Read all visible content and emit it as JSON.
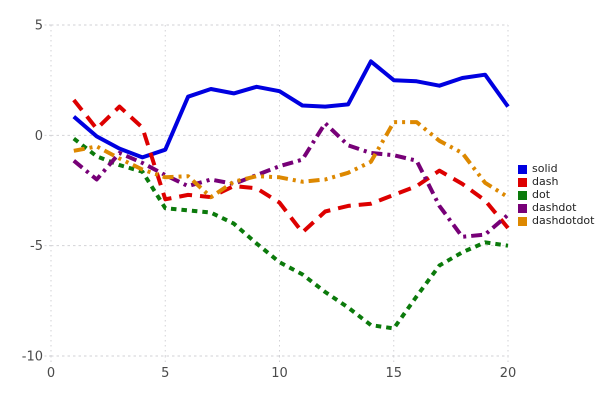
{
  "chart_data": {
    "type": "line",
    "title": "",
    "xlabel": "",
    "ylabel": "",
    "x": [
      1,
      2,
      3,
      4,
      5,
      6,
      7,
      8,
      9,
      10,
      11,
      12,
      13,
      14,
      15,
      16,
      17,
      18,
      19,
      20
    ],
    "series": [
      {
        "name": "solid",
        "color": "#0000e0",
        "dash": "solid",
        "values": [
          0.85,
          -0.05,
          -0.6,
          -1.0,
          -0.65,
          1.75,
          2.1,
          1.9,
          2.2,
          2.0,
          1.35,
          1.3,
          1.4,
          3.35,
          2.5,
          2.45,
          2.25,
          2.6,
          2.75,
          1.3
        ]
      },
      {
        "name": "dash",
        "color": "#dd0000",
        "dash": "dash",
        "values": [
          1.6,
          0.3,
          1.3,
          0.35,
          -2.9,
          -2.7,
          -2.8,
          -2.3,
          -2.4,
          -3.05,
          -4.4,
          -3.45,
          -3.2,
          -3.1,
          -2.7,
          -2.3,
          -1.6,
          -2.2,
          -2.95,
          -4.2
        ]
      },
      {
        "name": "dot",
        "color": "#0b7a0b",
        "dash": "dot",
        "values": [
          -0.15,
          -0.95,
          -1.35,
          -1.65,
          -3.3,
          -3.4,
          -3.5,
          -4.0,
          -4.9,
          -5.75,
          -6.3,
          -7.1,
          -7.8,
          -8.6,
          -8.75,
          -7.3,
          -5.9,
          -5.3,
          -4.85,
          -5.0
        ]
      },
      {
        "name": "dashdot",
        "color": "#770077",
        "dash": "dashdot",
        "values": [
          -1.15,
          -2.0,
          -0.8,
          -1.25,
          -1.8,
          -2.3,
          -2.0,
          -2.2,
          -1.8,
          -1.4,
          -1.1,
          0.55,
          -0.45,
          -0.8,
          -0.9,
          -1.15,
          -3.2,
          -4.6,
          -4.5,
          -3.6
        ]
      },
      {
        "name": "dashdotdot",
        "color": "#dd8800",
        "dash": "dashdotdot",
        "values": [
          -0.7,
          -0.5,
          -1.05,
          -1.55,
          -1.9,
          -1.85,
          -2.8,
          -2.1,
          -1.85,
          -1.9,
          -2.1,
          -2.0,
          -1.7,
          -1.2,
          0.6,
          0.6,
          -0.25,
          -0.8,
          -2.15,
          -2.8
        ]
      }
    ],
    "xlim": [
      0,
      20
    ],
    "ylim": [
      -10,
      5
    ],
    "xticks": [
      0,
      5,
      10,
      15,
      20
    ],
    "yticks": [
      -10,
      -5,
      0,
      5
    ],
    "grid": true,
    "legend_position": "right",
    "legend": [
      "solid",
      "dash",
      "dot",
      "dashdot",
      "dashdotdot"
    ]
  },
  "colors": {
    "background": "#ffffff",
    "grid": "#d2d2d6",
    "tick_label": "#4a4a4a",
    "legend_text": "#222222"
  }
}
